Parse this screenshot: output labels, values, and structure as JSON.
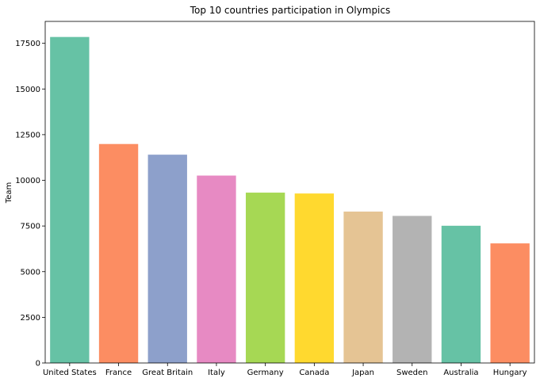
{
  "chart_data": {
    "type": "bar",
    "title": "Top 10 countries participation in Olympics",
    "xlabel": "",
    "ylabel": "Team",
    "categories": [
      "United States",
      "France",
      "Great Britain",
      "Italy",
      "Germany",
      "Canada",
      "Japan",
      "Sweden",
      "Australia",
      "Hungary"
    ],
    "values": [
      17847,
      11988,
      11404,
      10260,
      9326,
      9279,
      8289,
      8052,
      7513,
      6547
    ],
    "colors": [
      "#66c2a5",
      "#fc8d62",
      "#8da0cb",
      "#e78ac3",
      "#a6d854",
      "#ffd92f",
      "#e5c494",
      "#b3b3b3",
      "#66c2a5",
      "#fc8d62"
    ],
    "ylim": [
      0,
      18700
    ],
    "yticks": [
      0,
      2500,
      5000,
      7500,
      10000,
      12500,
      15000,
      17500
    ],
    "grid": false,
    "legend": "none"
  }
}
